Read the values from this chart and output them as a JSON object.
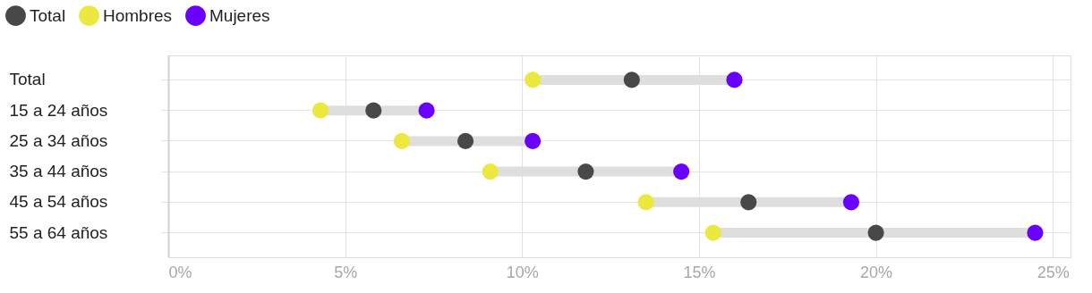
{
  "chart_data": {
    "type": "scatter",
    "orientation": "horizontal",
    "categories": [
      "Total",
      "15 a 24 años",
      "25 a 34 años",
      "35 a 44 años",
      "45 a 54 años",
      "55 a 64 años"
    ],
    "series": [
      {
        "name": "Total",
        "color": "#484848",
        "values": [
          13.1,
          5.8,
          8.4,
          11.8,
          16.4,
          20.0
        ]
      },
      {
        "name": "Hombres",
        "color": "#ebe83f",
        "values": [
          10.3,
          4.3,
          6.6,
          9.1,
          13.5,
          15.4
        ]
      },
      {
        "name": "Mujeres",
        "color": "#6a00ff",
        "values": [
          16.0,
          7.3,
          10.3,
          14.5,
          19.3,
          24.5
        ]
      }
    ],
    "xlim": [
      0,
      25.5
    ],
    "xticks": [
      {
        "value": 0,
        "label": "0%"
      },
      {
        "value": 5,
        "label": "5%"
      },
      {
        "value": 10,
        "label": "10%"
      },
      {
        "value": 15,
        "label": "15%"
      },
      {
        "value": 20,
        "label": "20%"
      },
      {
        "value": 25,
        "label": "25%"
      }
    ],
    "grid": true,
    "legend": "top left",
    "marker": "circle"
  }
}
